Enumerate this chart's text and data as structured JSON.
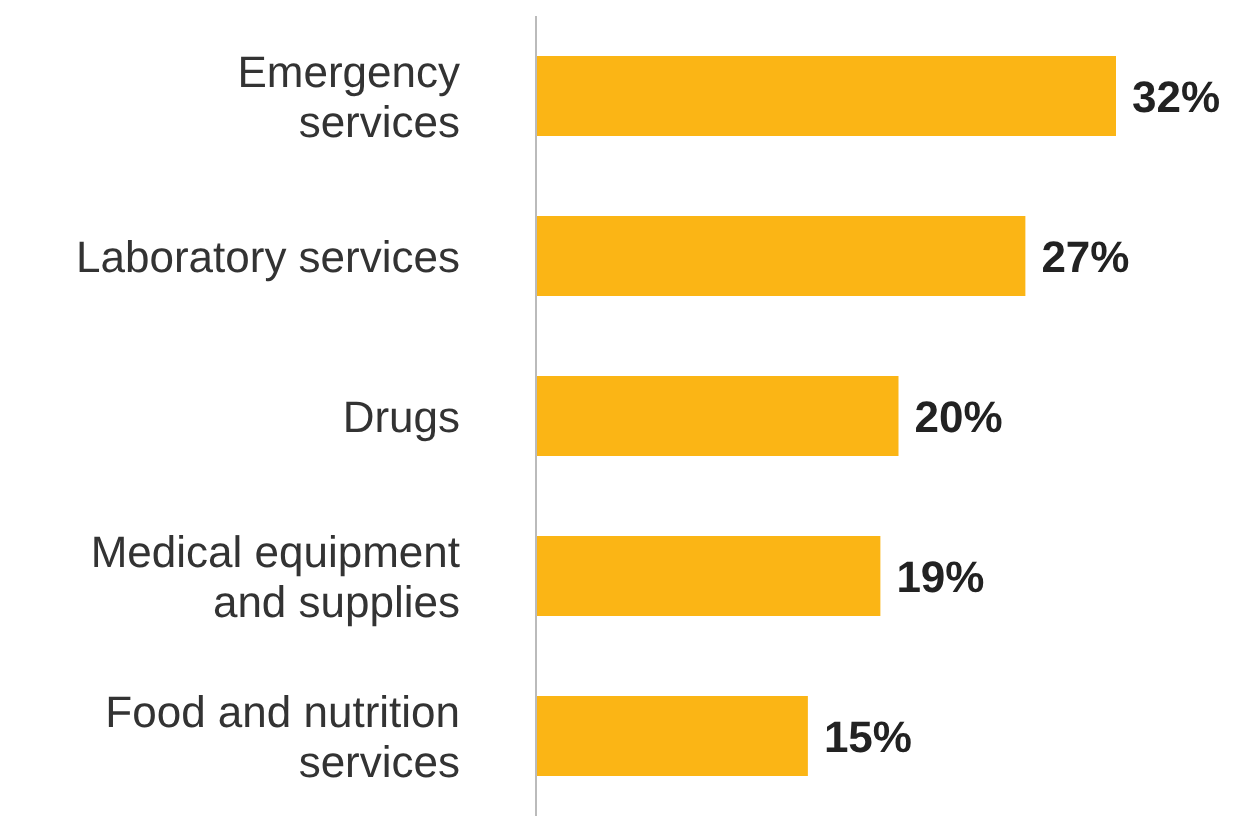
{
  "chart_data": {
    "type": "bar",
    "orientation": "horizontal",
    "categories": [
      "Emergency services",
      "Laboratory services",
      "Drugs",
      "Medical equipment and supplies",
      "Food and nutrition services"
    ],
    "values": [
      32,
      27,
      20,
      19,
      15
    ],
    "value_labels": [
      "32%",
      "27%",
      "20%",
      "19%",
      "15%"
    ],
    "color": "#fbb515",
    "grid": false,
    "legend": false
  }
}
